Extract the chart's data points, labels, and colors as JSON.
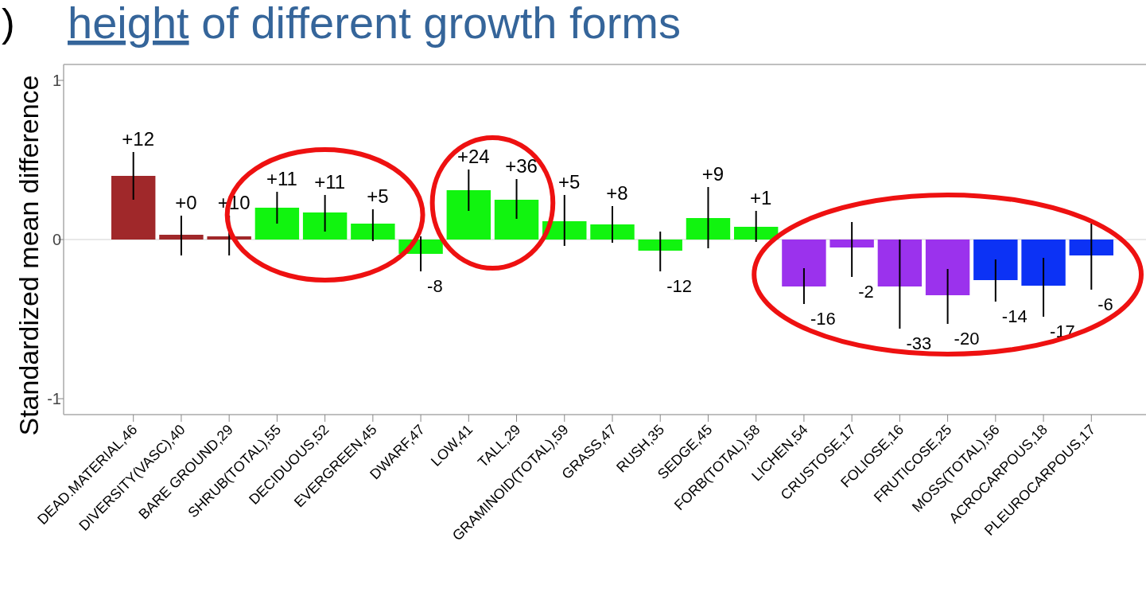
{
  "chart_data": {
    "type": "bar",
    "title": "height of different growth forms",
    "ylabel": "Standardized mean difference",
    "annotations": [
      ")",
      {
        "text": "+12",
        "x": "DEAD.MATERIAL,46",
        "y": 0.55
      },
      {
        "text": "+0",
        "x": "DIVERSITY(VASC),40",
        "y": 0.15
      },
      {
        "text": "+10",
        "x": "BARE GROUND,29",
        "y": 0.15
      },
      {
        "text": "+11",
        "x": "SHRUB(TOTAL),55",
        "y": 0.3
      },
      {
        "text": "+11",
        "x": "DECIDUOUS,52",
        "y": 0.28
      },
      {
        "text": "+5",
        "x": "EVERGREEN,45",
        "y": 0.19
      },
      {
        "text": "-8",
        "x": "DWARF,47",
        "y": -0.2
      },
      {
        "text": "+24",
        "x": "LOW,41",
        "y": 0.44
      },
      {
        "text": "+36",
        "x": "TALL,29",
        "y": 0.38
      },
      {
        "text": "+5",
        "x": "GRAMINOID(TOTAL),59",
        "y": 0.28
      },
      {
        "text": "+8",
        "x": "GRASS,47",
        "y": 0.21
      },
      {
        "text": "-12",
        "x": "RUSH,35",
        "y": -0.2
      },
      {
        "text": "+9",
        "x": "SEDGE,45",
        "y": 0.33
      },
      {
        "text": "+1",
        "x": "FORB(TOTAL),58",
        "y": 0.18
      },
      {
        "text": "-16",
        "x": "LICHEN,54",
        "y": -0.405
      },
      {
        "text": "-2",
        "x": "CRUSTOSE,17",
        "y": -0.235
      },
      {
        "text": "-33",
        "x": "FOLIOSE,16",
        "y": -0.56
      },
      {
        "text": "-20",
        "x": "FRUTICOSE,25",
        "y": -0.53
      },
      {
        "text": "-14",
        "x": "MOSS(TOTAL),56",
        "y": -0.39
      },
      {
        "text": "-17",
        "x": "ACROCARPOUS,18",
        "y": -0.485
      },
      {
        "text": "-6",
        "x": "PLEUROCARPOUS,17",
        "y": -0.315
      }
    ],
    "categories": [
      "DEAD.MATERIAL,46",
      "DIVERSITY(VASC),40",
      "BARE GROUND,29",
      "SHRUB(TOTAL),55",
      "DECIDUOUS,52",
      "EVERGREEN,45",
      "DWARF,47",
      "LOW,41",
      "TALL,29",
      "GRAMINOID(TOTAL),59",
      "GRASS,47",
      "RUSH,35",
      "SEDGE,45",
      "FORB(TOTAL),58",
      "LICHEN,54",
      "CRUSTOSE,17",
      "FOLIOSE,16",
      "FRUTICOSE,25",
      "MOSS(TOTAL),56",
      "ACROCARPOUS,18",
      "PLEUROCARPOUS,17"
    ],
    "values": [
      0.4,
      0.03,
      0.02,
      0.2,
      0.17,
      0.1,
      -0.09,
      0.31,
      0.25,
      0.115,
      0.095,
      -0.07,
      0.135,
      0.08,
      -0.295,
      -0.05,
      -0.295,
      -0.35,
      -0.255,
      -0.29,
      -0.1
    ],
    "errors": [
      [
        0.25,
        0.55
      ],
      [
        -0.1,
        0.15
      ],
      [
        -0.1,
        0.15
      ],
      [
        0.1,
        0.3
      ],
      [
        0.05,
        0.28
      ],
      [
        -0.01,
        0.19
      ],
      [
        -0.2,
        0.02
      ],
      [
        0.18,
        0.44
      ],
      [
        0.13,
        0.38
      ],
      [
        -0.04,
        0.28
      ],
      [
        -0.02,
        0.21
      ],
      [
        -0.2,
        0.05
      ],
      [
        -0.055,
        0.33
      ],
      [
        -0.015,
        0.18
      ],
      [
        -0.405,
        -0.18
      ],
      [
        -0.235,
        0.11
      ],
      [
        -0.56,
        0
      ],
      [
        -0.53,
        -0.185
      ],
      [
        -0.39,
        -0.125
      ],
      [
        -0.485,
        -0.115
      ],
      [
        -0.315,
        0.1
      ]
    ],
    "colors": [
      "#a0282a",
      "#a0282a",
      "#a0282a",
      "#11f40f",
      "#11f40f",
      "#11f40f",
      "#11f40f",
      "#11f40f",
      "#11f40f",
      "#11f40f",
      "#11f40f",
      "#11f40f",
      "#11f40f",
      "#11f40f",
      "#9b32ed",
      "#9b32ed",
      "#9b32ed",
      "#9b32ed",
      "#0c32f5",
      "#0c32f5",
      "#0c32f5"
    ],
    "ylim": [
      -1.1,
      1.1
    ],
    "yticks": [
      -1,
      0,
      1
    ],
    "ref_lines": [
      {
        "axis": "y",
        "value": 0,
        "color": "#e0e0e0"
      }
    ]
  }
}
